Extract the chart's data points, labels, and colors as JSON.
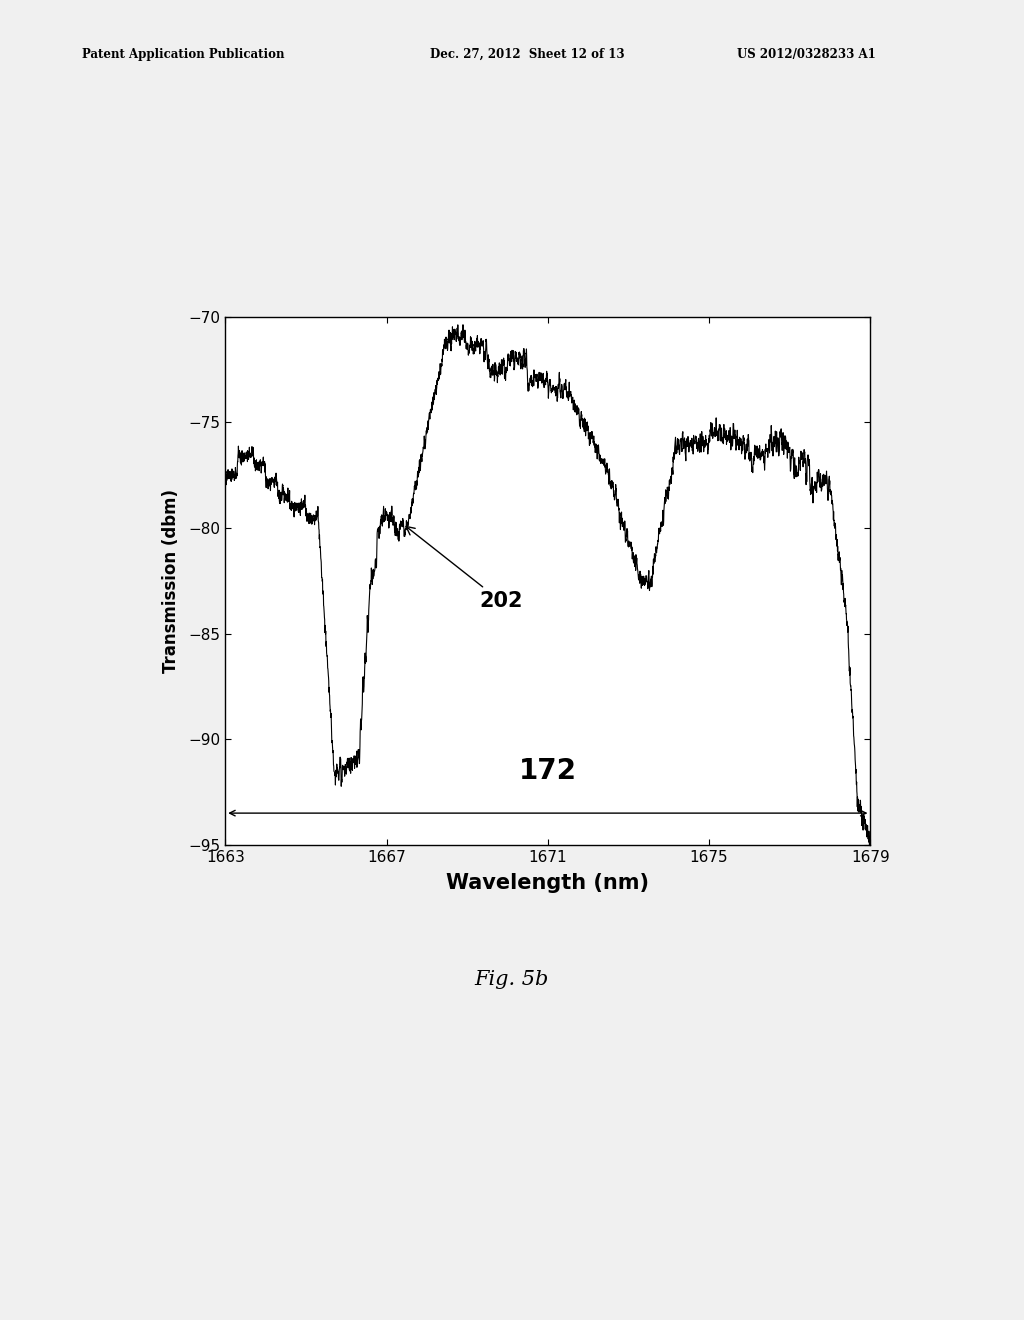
{
  "title": "",
  "xlabel": "Wavelength (nm)",
  "ylabel": "Transmission (dbm)",
  "xlim": [
    1663,
    1679
  ],
  "ylim": [
    -95,
    -70
  ],
  "xticks": [
    1663,
    1667,
    1671,
    1675,
    1679
  ],
  "yticks": [
    -70,
    -75,
    -80,
    -85,
    -90,
    -95
  ],
  "line_color": "#000000",
  "bg_color": "#ffffff",
  "fig_bg_color": "#f0f0f0",
  "label_202": "202",
  "label_172": "172",
  "header_text": "Patent Application Publication    Dec. 27, 2012  Sheet 12 of 13    US 2012/0328233 A1",
  "footer_text": "Fig. 5b",
  "seed": 42
}
